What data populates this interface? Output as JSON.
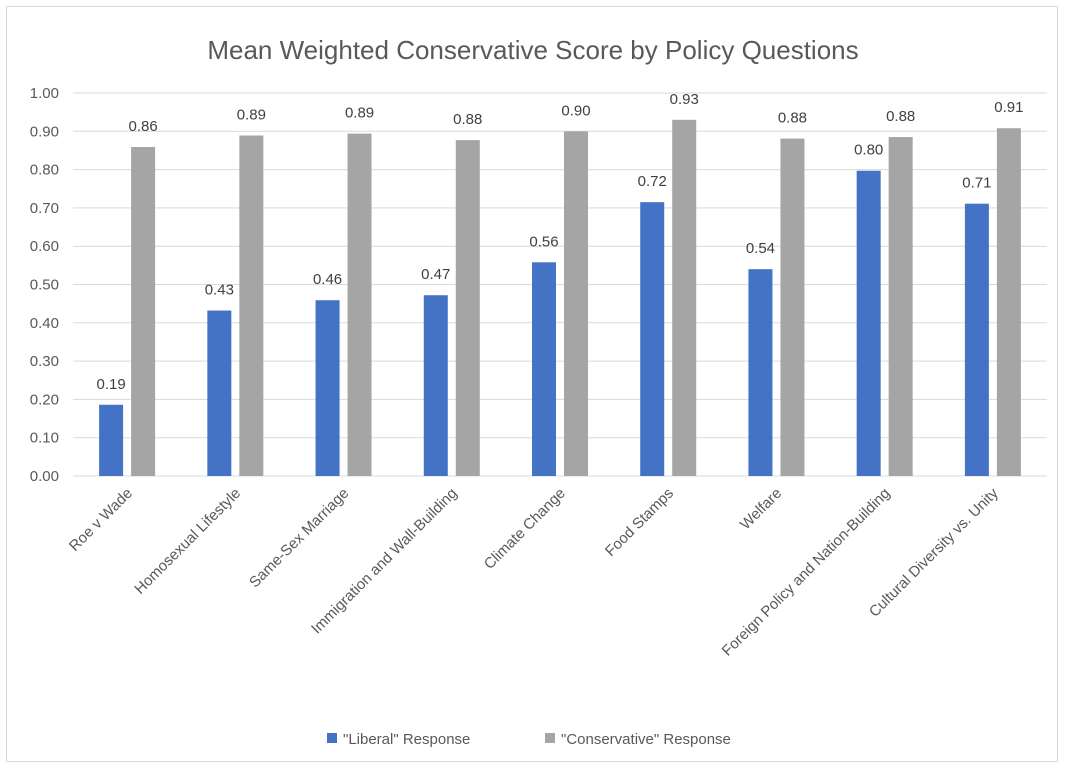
{
  "chart_data": {
    "type": "bar",
    "title": "Mean Weighted Conservative Score by Policy Questions",
    "xlabel": "",
    "ylabel": "",
    "ylim": [
      0,
      1.0
    ],
    "y_ticks": [
      "0.00",
      "0.10",
      "0.20",
      "0.30",
      "0.40",
      "0.50",
      "0.60",
      "0.70",
      "0.80",
      "0.90",
      "1.00"
    ],
    "grid": true,
    "legend_position": "bottom",
    "categories": [
      "Roe v Wade",
      "Homosexual Lifestyle",
      "Same-Sex Marriage",
      "Immigration and Wall-Building",
      "Climate Change",
      "Food Stamps",
      "Welfare",
      "Foreign Policy and Nation-Building",
      "Cultural Diversity vs. Unity"
    ],
    "series": [
      {
        "name": "\"Liberal\" Response",
        "color": "#4472c4",
        "values": [
          0.186,
          0.432,
          0.459,
          0.472,
          0.558,
          0.715,
          0.54,
          0.797,
          0.711
        ],
        "labels": [
          "0.19",
          "0.43",
          "0.46",
          "0.47",
          "0.56",
          "0.72",
          "0.54",
          "0.80",
          "0.71"
        ]
      },
      {
        "name": "\"Conservative\" Response",
        "color": "#a5a5a5",
        "values": [
          0.859,
          0.889,
          0.894,
          0.877,
          0.9,
          0.93,
          0.881,
          0.885,
          0.908
        ],
        "labels": [
          "0.86",
          "0.89",
          "0.89",
          "0.88",
          "0.90",
          "0.93",
          "0.88",
          "0.88",
          "0.91"
        ]
      }
    ]
  }
}
